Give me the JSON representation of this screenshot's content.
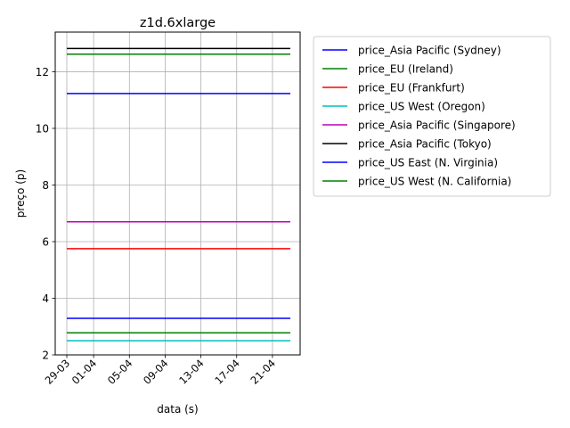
{
  "chart_data": {
    "type": "line",
    "title": "z1d.6xlarge",
    "xlabel": "data (s)",
    "ylabel": "preço (p)",
    "x_ticks": [
      "29-03",
      "01-04",
      "05-04",
      "09-04",
      "13-04",
      "17-04",
      "21-04"
    ],
    "x_range": [
      "2019-03-29",
      "2019-04-24"
    ],
    "x": [
      "2019-03-29",
      "2019-04-23"
    ],
    "ylim": [
      2.0,
      13.4
    ],
    "y_ticks": [
      2,
      4,
      6,
      8,
      10,
      12
    ],
    "grid": true,
    "legend_position": "outside-right",
    "series": [
      {
        "name": "price_Asia Pacific (Sydney)",
        "color": "#0000ff",
        "values": [
          11.23,
          11.23
        ]
      },
      {
        "name": "price_EU (Ireland)",
        "color": "#008000",
        "values": [
          12.62,
          12.62
        ]
      },
      {
        "name": "price_EU (Frankfurt)",
        "color": "#ff0000",
        "values": [
          5.75,
          5.75
        ]
      },
      {
        "name": "price_US West (Oregon)",
        "color": "#00bfbf",
        "values": [
          2.5,
          2.5
        ]
      },
      {
        "name": "price_Asia Pacific (Singapore)",
        "color": "#bf00bf",
        "values": [
          6.7,
          6.7
        ]
      },
      {
        "name": "price_Asia Pacific (Tokyo)",
        "color": "#000000",
        "values": [
          12.82,
          12.82
        ]
      },
      {
        "name": "price_US East (N. Virginia)",
        "color": "#0000ff",
        "values": [
          3.29,
          3.29
        ]
      },
      {
        "name": "price_US West (N. California)",
        "color": "#008000",
        "values": [
          2.78,
          2.78
        ]
      }
    ]
  }
}
